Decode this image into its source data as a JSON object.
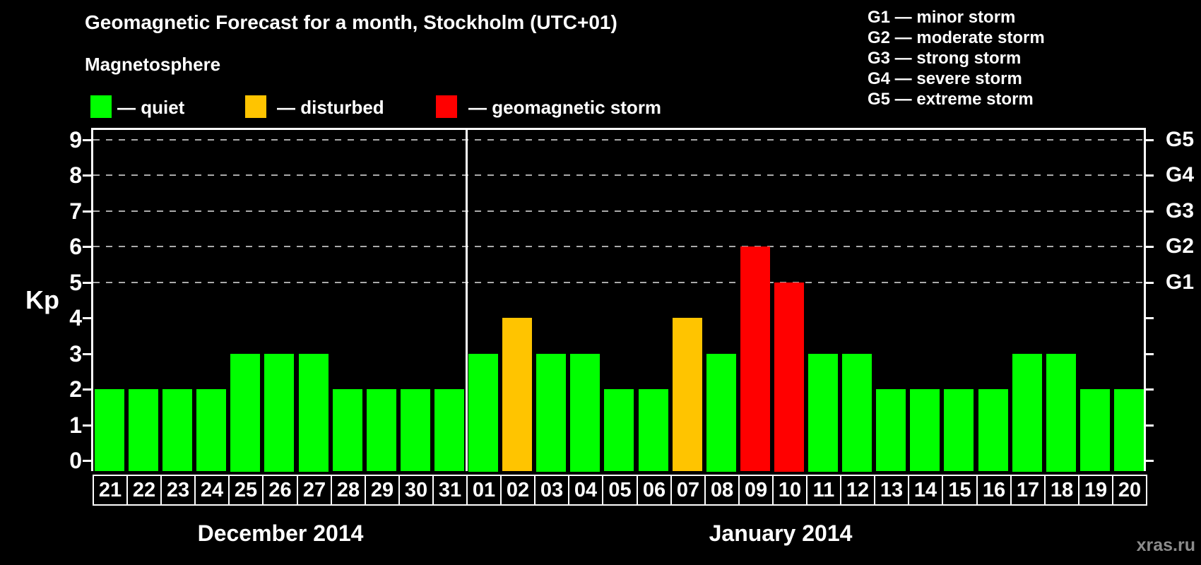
{
  "header": {
    "title": "Geomagnetic Forecast for a month, Stockholm (UTC+01)",
    "subtitle": "Magnetosphere"
  },
  "legend": {
    "items": [
      {
        "name": "quiet",
        "label": "— quiet",
        "color": "#00ff00"
      },
      {
        "name": "disturbed",
        "label": "— disturbed",
        "color": "#ffc400"
      },
      {
        "name": "geomagnetic-storm",
        "label": "— geomagnetic storm",
        "color": "#ff0000"
      }
    ]
  },
  "storm_scale_legend": {
    "items": [
      "G1 — minor storm",
      "G2 — moderate storm",
      "G3 — strong storm",
      "G4 — severe storm",
      "G5 — extreme storm"
    ]
  },
  "watermark": "xras.ru",
  "chart_data": {
    "type": "bar",
    "title": "Geomagnetic Forecast for a month, Stockholm (UTC+01)",
    "ylabel": "Kp",
    "ylim": [
      0,
      9
    ],
    "yticks": [
      0,
      1,
      2,
      3,
      4,
      5,
      6,
      7,
      8,
      9
    ],
    "gridline_levels": [
      5,
      6,
      7,
      8,
      9
    ],
    "grid": "dashed horizontal at G levels only",
    "right_axis_labels": [
      {
        "level": 5,
        "label": "G1"
      },
      {
        "level": 6,
        "label": "G2"
      },
      {
        "level": 7,
        "label": "G3"
      },
      {
        "level": 8,
        "label": "G4"
      },
      {
        "level": 9,
        "label": "G5"
      }
    ],
    "months": [
      {
        "label": "December 2014",
        "days": [
          "21",
          "22",
          "23",
          "24",
          "25",
          "26",
          "27",
          "28",
          "29",
          "30",
          "31"
        ],
        "values": [
          2,
          2,
          2,
          2,
          3,
          3,
          3,
          2,
          2,
          2,
          2
        ]
      },
      {
        "label": "January 2014",
        "days": [
          "01",
          "02",
          "03",
          "04",
          "05",
          "06",
          "07",
          "08",
          "09",
          "10",
          "11",
          "12",
          "13",
          "14",
          "15",
          "16",
          "17",
          "18",
          "19",
          "20"
        ],
        "values": [
          3,
          4,
          3,
          3,
          2,
          2,
          4,
          3,
          6,
          5,
          3,
          3,
          2,
          2,
          2,
          2,
          3,
          3,
          2,
          2
        ]
      }
    ],
    "colors": {
      "quiet": "#00ff00",
      "disturbed": "#ffc400",
      "storm": "#ff0000"
    },
    "color_rule": {
      "disturbed_min": 4,
      "storm_min": 5
    },
    "legend_position": "top-left",
    "background": "#000000",
    "gridline_color": "#aaaaaa"
  }
}
